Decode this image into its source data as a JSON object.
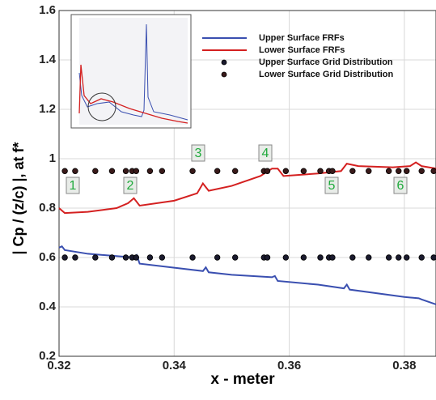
{
  "chart_data": {
    "type": "line",
    "x_label": "x - meter",
    "y_label": "| Cp / (z/c) |, at f*",
    "xlim": [
      0.32,
      0.3855
    ],
    "ylim": [
      0.2,
      1.6
    ],
    "xticks": [
      0.32,
      0.34,
      0.36,
      0.38
    ],
    "yticks": [
      0.2,
      0.4,
      0.6,
      0.8,
      1,
      1.2,
      1.4,
      1.6
    ],
    "grid": true,
    "legend": "upper right",
    "annotations": [
      "1",
      "2",
      "3",
      "4",
      "5",
      "6"
    ],
    "series": [
      {
        "name": "Upper Surface FRFs",
        "color": "#3a4fb0",
        "mark": "line",
        "x": [
          0.32,
          0.3205,
          0.321,
          0.325,
          0.333,
          0.3335,
          0.334,
          0.345,
          0.3455,
          0.346,
          0.35,
          0.357,
          0.3575,
          0.358,
          0.365,
          0.3695,
          0.37,
          0.3705,
          0.38,
          0.3825,
          0.383,
          0.3855
        ],
        "values": [
          0.64,
          0.645,
          0.63,
          0.615,
          0.6,
          0.61,
          0.575,
          0.545,
          0.56,
          0.54,
          0.53,
          0.52,
          0.525,
          0.505,
          0.49,
          0.475,
          0.49,
          0.47,
          0.44,
          0.435,
          0.43,
          0.41
        ]
      },
      {
        "name": "Lower Surface FRFs",
        "color": "#d42020",
        "mark": "line",
        "x": [
          0.32,
          0.321,
          0.325,
          0.33,
          0.332,
          0.333,
          0.334,
          0.34,
          0.344,
          0.345,
          0.346,
          0.35,
          0.355,
          0.357,
          0.358,
          0.359,
          0.365,
          0.369,
          0.37,
          0.372,
          0.378,
          0.381,
          0.382,
          0.383,
          0.3855
        ],
        "values": [
          0.8,
          0.78,
          0.785,
          0.8,
          0.82,
          0.84,
          0.81,
          0.83,
          0.86,
          0.9,
          0.87,
          0.89,
          0.93,
          0.96,
          0.96,
          0.93,
          0.94,
          0.95,
          0.98,
          0.97,
          0.965,
          0.97,
          0.985,
          0.97,
          0.96
        ]
      },
      {
        "name": "Upper Surface Grid Distribution",
        "color": "#1a1a2e",
        "mark": "dot",
        "x": [
          0.321,
          0.3228,
          0.3263,
          0.3292,
          0.3316,
          0.3327,
          0.3334,
          0.3358,
          0.3379,
          0.3432,
          0.3475,
          0.3506,
          0.3556,
          0.3562,
          0.3594,
          0.3625,
          0.3654,
          0.3669,
          0.3675,
          0.371,
          0.3738,
          0.3773,
          0.379,
          0.3804,
          0.383,
          0.3851
        ],
        "values": [
          0.6,
          0.6,
          0.6,
          0.6,
          0.6,
          0.6,
          0.6,
          0.6,
          0.6,
          0.6,
          0.6,
          0.6,
          0.6,
          0.6,
          0.6,
          0.6,
          0.6,
          0.6,
          0.6,
          0.6,
          0.6,
          0.6,
          0.6,
          0.6,
          0.6,
          0.6
        ]
      },
      {
        "name": "Lower Surface Grid Distribution",
        "color": "#3a1a1a",
        "mark": "dot",
        "x": [
          0.321,
          0.3228,
          0.3263,
          0.3292,
          0.3316,
          0.3327,
          0.3334,
          0.3358,
          0.3379,
          0.3432,
          0.3475,
          0.3506,
          0.3556,
          0.3562,
          0.3594,
          0.3625,
          0.3654,
          0.3669,
          0.3675,
          0.371,
          0.3738,
          0.3773,
          0.379,
          0.3804,
          0.383,
          0.3851
        ],
        "values": [
          0.95,
          0.95,
          0.95,
          0.95,
          0.95,
          0.95,
          0.95,
          0.95,
          0.95,
          0.95,
          0.95,
          0.95,
          0.95,
          0.95,
          0.95,
          0.95,
          0.95,
          0.95,
          0.95,
          0.95,
          0.95,
          0.95,
          0.95,
          0.95,
          0.95,
          0.95
        ]
      }
    ]
  }
}
